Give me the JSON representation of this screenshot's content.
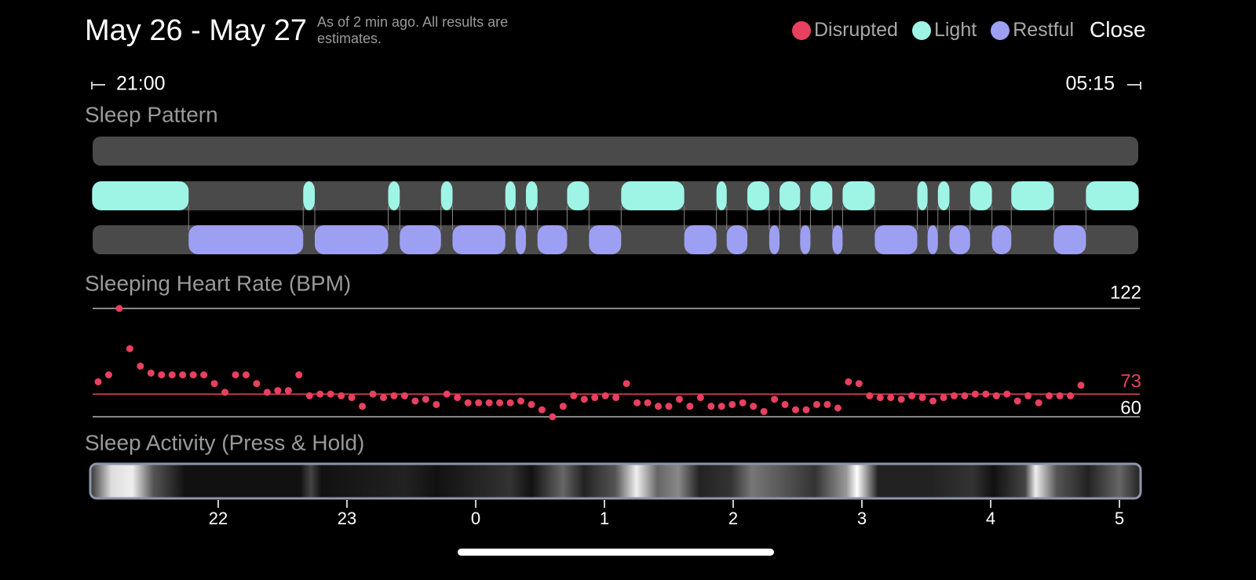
{
  "header": {
    "title": "May 26 - May 27",
    "subtitle": "As of 2 min ago. All results are estimates.",
    "close": "Close"
  },
  "legend": [
    {
      "label": "Disrupted",
      "color": "#e8405f"
    },
    {
      "label": "Light",
      "color": "#9ef5e6"
    },
    {
      "label": "Restful",
      "color": "#9da0f2"
    }
  ],
  "time_range": {
    "start": "21:00",
    "end": "05:15"
  },
  "sleep_pattern": {
    "title": "Sleep Pattern",
    "light": [
      [
        0.02,
        0.77
      ],
      [
        1.66,
        1.75
      ],
      [
        2.32,
        2.41
      ],
      [
        2.73,
        2.82
      ],
      [
        3.23,
        3.31
      ],
      [
        3.39,
        3.48
      ],
      [
        3.71,
        3.88
      ],
      [
        4.13,
        4.62
      ],
      [
        4.87,
        4.95
      ],
      [
        5.11,
        5.28
      ],
      [
        5.36,
        5.52
      ],
      [
        5.6,
        5.77
      ],
      [
        5.85,
        6.1
      ],
      [
        6.43,
        6.51
      ],
      [
        6.59,
        6.68
      ],
      [
        6.84,
        7.01
      ],
      [
        7.16,
        7.49
      ],
      [
        7.74,
        8.15
      ]
    ],
    "restful": [
      [
        0.77,
        1.66
      ],
      [
        1.75,
        2.32
      ],
      [
        2.41,
        2.73
      ],
      [
        2.82,
        3.23
      ],
      [
        3.31,
        3.39
      ],
      [
        3.48,
        3.71
      ],
      [
        3.88,
        4.13
      ],
      [
        4.62,
        4.87
      ],
      [
        4.95,
        5.11
      ],
      [
        5.28,
        5.36
      ],
      [
        5.52,
        5.6
      ],
      [
        5.77,
        5.85
      ],
      [
        6.1,
        6.43
      ],
      [
        6.51,
        6.59
      ],
      [
        6.68,
        6.84
      ],
      [
        7.01,
        7.16
      ],
      [
        7.49,
        7.74
      ]
    ]
  },
  "heart_rate": {
    "title": "Sleeping Heart Rate (BPM)",
    "max": 122,
    "average": 73,
    "min": 60,
    "values": [
      80,
      84,
      122,
      99,
      89,
      85,
      84,
      84,
      84,
      84,
      84,
      79,
      74,
      84,
      84,
      79,
      74,
      75,
      75,
      84,
      72,
      73,
      73,
      72,
      71,
      66,
      73,
      71,
      72,
      72,
      69,
      70,
      67,
      73,
      71,
      68,
      68,
      68,
      68,
      68,
      69,
      67,
      64,
      60,
      66,
      72,
      70,
      71,
      72,
      71,
      79,
      68,
      68,
      66,
      66,
      70,
      66,
      71,
      66,
      66,
      67,
      68,
      66,
      63,
      70,
      67,
      64,
      64,
      67,
      67,
      65,
      80,
      79,
      72,
      71,
      71,
      70,
      72,
      71,
      69,
      71,
      72,
      72,
      73,
      73,
      72,
      73,
      69,
      72,
      68,
      72,
      72,
      72,
      78
    ]
  },
  "sleep_activity": {
    "title": "Sleep Activity (Press & Hold)",
    "ticks": [
      {
        "value": 1,
        "label": "22"
      },
      {
        "value": 2,
        "label": "23"
      },
      {
        "value": 3,
        "label": "0"
      },
      {
        "value": 4,
        "label": "1"
      },
      {
        "value": 5,
        "label": "2"
      },
      {
        "value": 6,
        "label": "3"
      },
      {
        "value": 7,
        "label": "4"
      },
      {
        "value": 8,
        "label": "5"
      }
    ]
  }
}
